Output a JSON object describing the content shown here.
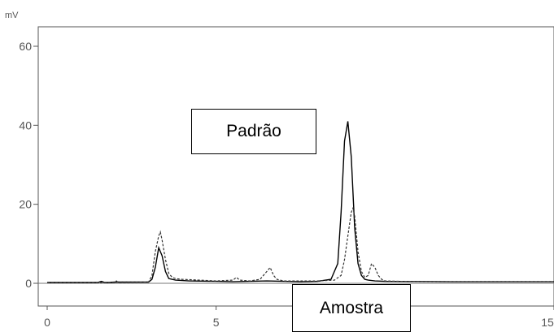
{
  "chart_data": {
    "type": "line",
    "ylabel": "mV",
    "xlabel": "",
    "xlim": [
      0,
      15
    ],
    "ylim": [
      -6,
      64
    ],
    "x_ticks": [
      0,
      5,
      15
    ],
    "y_ticks": [
      0,
      20,
      40,
      60
    ],
    "annotations": [
      "Padrão",
      "Amostra"
    ],
    "series": [
      {
        "style": "solid",
        "x": [
          0,
          1.5,
          1.6,
          1.7,
          1.8,
          2.0,
          3.0,
          3.1,
          3.2,
          3.3,
          3.4,
          3.5,
          3.6,
          3.8,
          4.2,
          5.0,
          5.5,
          6.0,
          6.5,
          7.0,
          7.5,
          8.0,
          8.4,
          8.6,
          8.7,
          8.8,
          8.9,
          9.0,
          9.1,
          9.2,
          9.3,
          9.4,
          9.5,
          9.7,
          10.0,
          12.0,
          15.0
        ],
        "y": [
          0.2,
          0.2,
          0.5,
          0.2,
          0.2,
          0.3,
          0.3,
          1.0,
          4.0,
          9.0,
          7.0,
          3.0,
          1.2,
          0.8,
          0.6,
          0.5,
          0.4,
          0.5,
          0.6,
          0.5,
          0.4,
          0.5,
          1.0,
          5.0,
          18.0,
          36.0,
          41.0,
          32.0,
          14.0,
          5.0,
          2.0,
          1.0,
          0.8,
          0.6,
          0.5,
          0.4,
          0.4
        ]
      },
      {
        "style": "dashed",
        "x": [
          0,
          2.0,
          2.05,
          2.1,
          3.0,
          3.1,
          3.2,
          3.3,
          3.35,
          3.4,
          3.5,
          3.6,
          3.7,
          3.8,
          4.0,
          4.5,
          5.0,
          5.5,
          5.6,
          5.7,
          6.0,
          6.3,
          6.5,
          6.6,
          6.7,
          6.8,
          7.0,
          7.5,
          8.0,
          8.5,
          8.7,
          8.8,
          8.9,
          9.0,
          9.05,
          9.1,
          9.2,
          9.3,
          9.4,
          9.5,
          9.6,
          9.7,
          9.8,
          9.9,
          10.0,
          10.5,
          12.0,
          15.0
        ],
        "y": [
          0.2,
          0.2,
          0.6,
          0.2,
          0.3,
          2.0,
          8.0,
          12.0,
          13.0,
          11.0,
          6.0,
          2.5,
          1.5,
          1.2,
          1.0,
          0.8,
          0.6,
          0.8,
          1.5,
          0.8,
          0.6,
          1.0,
          3.0,
          4.0,
          2.0,
          1.0,
          0.6,
          0.6,
          0.6,
          0.8,
          2.0,
          6.0,
          12.0,
          18.0,
          19.0,
          17.0,
          8.0,
          3.0,
          1.5,
          2.0,
          5.0,
          4.0,
          2.0,
          1.0,
          0.6,
          0.5,
          0.4,
          0.4
        ]
      }
    ]
  },
  "colors": {
    "axis": "#555555",
    "grid": "#777777",
    "solid_trace": "#000000",
    "dashed_trace": "#333333"
  }
}
